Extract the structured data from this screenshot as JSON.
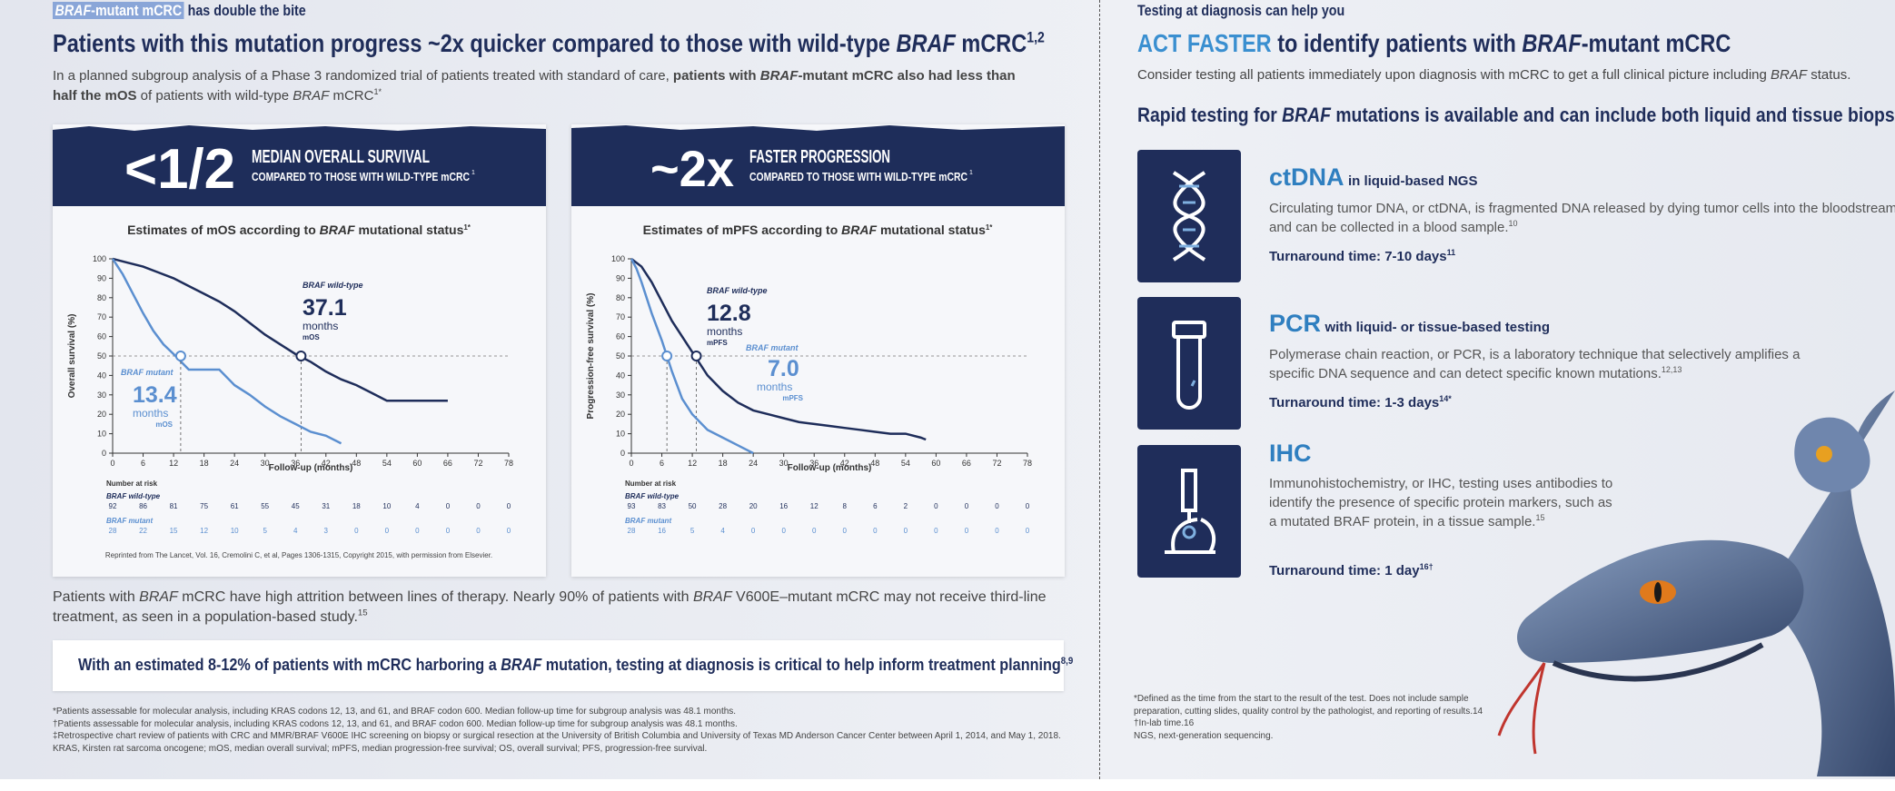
{
  "left": {
    "kicker": [
      "BRAF",
      "-mutant mCRC",
      " has double the bite"
    ],
    "title": [
      "Patients with this mutation progress ~2x quicker compared to those with wild-type ",
      "BRAF",
      " mCRC",
      "1,2"
    ],
    "intro": [
      "In a planned subgroup analysis of a Phase 3 randomized trial of patients treated with standard of care, ",
      "patients with ",
      "BRAF",
      "-mutant mCRC also had less than half the mOS",
      " of patients with wild-type ",
      "BRAF",
      " mCRC",
      "1*"
    ],
    "cards": [
      {
        "banner_big": "<1/2",
        "banner_title": "MEDIAN OVERALL SURVIVAL",
        "banner_sub": "COMPARED TO THOSE WITH WILD-TYPE mCRC",
        "banner_sup": "1",
        "chart": {
          "type": "line",
          "title": [
            "Estimates of mOS according to ",
            "BRAF",
            " mutational status",
            "1*"
          ],
          "ylabel": "Overall survival (%)",
          "xlabel": "Follow-up (months)",
          "xlim": [
            0,
            78
          ],
          "ylim": [
            0,
            100
          ],
          "xticks": [
            0,
            6,
            12,
            18,
            24,
            30,
            36,
            42,
            48,
            54,
            60,
            66,
            72,
            78
          ],
          "yticks": [
            0,
            10,
            20,
            30,
            40,
            50,
            60,
            70,
            80,
            90,
            100
          ],
          "risk_title": "Number at risk",
          "series": [
            {
              "name": "BRAF wild-type",
              "color": "#1e2d5a",
              "x": [
                0,
                3,
                6,
                9,
                12,
                15,
                18,
                21,
                24,
                27,
                30,
                33,
                36,
                39,
                42,
                45,
                48,
                51,
                54,
                57,
                60,
                63,
                66
              ],
              "values": [
                100,
                98,
                96,
                93,
                90,
                86,
                82,
                78,
                73,
                67,
                61,
                56,
                51,
                47,
                42,
                38,
                35,
                31,
                27,
                27,
                27,
                27,
                27
              ],
              "median": 37.1,
              "median_unit": "months",
              "median_label": "mOS",
              "at_risk": [
                92,
                86,
                81,
                75,
                61,
                55,
                45,
                31,
                18,
                10,
                4,
                0,
                0,
                0
              ]
            },
            {
              "name": "BRAF mutant",
              "color": "#5b8fd0",
              "x": [
                0,
                2,
                4,
                6,
                8,
                10,
                12,
                15,
                18,
                21,
                24,
                27,
                30,
                33,
                36,
                39,
                42,
                45
              ],
              "values": [
                100,
                92,
                82,
                72,
                63,
                56,
                51,
                43,
                43,
                43,
                35,
                30,
                24,
                19,
                15,
                11,
                9,
                5
              ],
              "median": 13.4,
              "median_unit": "months",
              "median_label": "mOS",
              "at_risk": [
                28,
                22,
                15,
                12,
                10,
                5,
                4,
                3,
                0,
                0,
                0,
                0,
                0,
                0
              ]
            }
          ]
        },
        "source": "Reprinted from The Lancet, Vol. 16, Cremolini C, et al, Pages 1306-1315, Copyright 2015, with permission from Elsevier."
      },
      {
        "banner_big": "~2x",
        "banner_title": "FASTER PROGRESSION",
        "banner_sub": "COMPARED TO THOSE WITH WILD-TYPE mCRC",
        "banner_sup": "1",
        "chart": {
          "type": "line",
          "title": [
            "Estimates of mPFS according to ",
            "BRAF",
            " mutational status",
            "1*"
          ],
          "ylabel": "Progression-free survival (%)",
          "xlabel": "Follow-up (months)",
          "xlim": [
            0,
            78
          ],
          "ylim": [
            0,
            100
          ],
          "xticks": [
            0,
            6,
            12,
            18,
            24,
            30,
            36,
            42,
            48,
            54,
            60,
            66,
            72,
            78
          ],
          "yticks": [
            0,
            10,
            20,
            30,
            40,
            50,
            60,
            70,
            80,
            90,
            100
          ],
          "risk_title": "Number at risk",
          "series": [
            {
              "name": "BRAF wild-type",
              "color": "#1e2d5a",
              "x": [
                0,
                2,
                4,
                6,
                8,
                10,
                12,
                15,
                18,
                21,
                24,
                27,
                30,
                33,
                36,
                39,
                42,
                45,
                48,
                51,
                54,
                57,
                58
              ],
              "values": [
                100,
                96,
                88,
                78,
                68,
                60,
                52,
                40,
                32,
                26,
                22,
                20,
                18,
                16,
                15,
                14,
                13,
                12,
                11,
                10,
                10,
                8,
                7
              ],
              "median": 12.8,
              "median_unit": "months",
              "median_label": "mPFS",
              "at_risk": [
                93,
                83,
                50,
                28,
                20,
                16,
                12,
                8,
                6,
                2,
                0,
                0,
                0,
                0
              ]
            },
            {
              "name": "BRAF mutant",
              "color": "#5b8fd0",
              "x": [
                0,
                1,
                2,
                3,
                4,
                5,
                6,
                7,
                8,
                9,
                10,
                12,
                15,
                18,
                21,
                24
              ],
              "values": [
                100,
                95,
                88,
                80,
                72,
                65,
                58,
                50,
                42,
                35,
                28,
                20,
                12,
                8,
                4,
                0
              ],
              "median": {
                "value": 7,
                "label": "7.0"
              },
              "median_unit": "months",
              "median_label": "mPFS",
              "at_risk": [
                28,
                16,
                5,
                4,
                0,
                0,
                0,
                0,
                0,
                0,
                0,
                0,
                0,
                0
              ]
            }
          ]
        }
      }
    ],
    "note": [
      "Patients with ",
      "BRAF",
      " mCRC have high attrition between lines of therapy. Nearly 90% of patients with ",
      "BRAF",
      " V600E–mutant mCRC may not receive third-line treatment, as seen in a population-based study.",
      "15"
    ],
    "callout": [
      "With an estimated 8-12% of patients with mCRC harboring a ",
      "BRAF",
      " mutation, testing at diagnosis is critical to help inform treatment planning",
      "8,9"
    ],
    "footnotes": [
      "*Patients assessable for molecular analysis, including KRAS codons 12, 13, and 61, and BRAF codon 600. Median follow-up time for subgroup analysis was 48.1 months.",
      "†Patients assessable for molecular analysis, including KRAS codons 12, 13, and 61, and BRAF codon 600. Median follow-up time for subgroup analysis was 48.1 months.",
      "‡Retrospective chart review of patients with CRC and MMR/BRAF V600E IHC screening on biopsy or surgical resection at the University of British Columbia and University of Texas MD Anderson Cancer Center between April 1, 2014, and May 1, 2018.",
      "KRAS, Kirsten rat sarcoma oncogene; mOS, median overall survival; mPFS, median progression-free survival; OS, overall survival; PFS, progression-free survival."
    ]
  },
  "right": {
    "kicker": "Testing at diagnosis can help you",
    "title": [
      "ACT FASTER",
      " to identify patients with ",
      "BRAF",
      "-mutant mCRC"
    ],
    "intro": [
      "Consider testing all patients immediately upon diagnosis with mCRC to get a full clinical picture including ",
      "BRAF",
      " status."
    ],
    "subhead": [
      "Rapid testing for ",
      "BRAF",
      " mutations is available and can include both liquid and tissue biopsies"
    ],
    "methods": [
      {
        "name": "ctDNA",
        "qualifier": "in liquid-based NGS",
        "description": "Circulating tumor DNA, or ctDNA, is fragmented DNA released by dying tumor cells into the bloodstream and can be collected in a blood sample.",
        "description_ref": "10",
        "turnaround": "Turnaround time: 7-10 days",
        "turnaround_ref": "11"
      },
      {
        "name": "PCR",
        "qualifier": "with liquid- or tissue-based testing",
        "description": "Polymerase chain reaction, or PCR, is a laboratory technique that selectively amplifies a specific DNA sequence and can detect specific known mutations.",
        "description_ref": "12,13",
        "turnaround": "Turnaround time: 1-3 days",
        "turnaround_ref": "14*"
      },
      {
        "name": "IHC",
        "description": "Immunohistochemistry, or IHC, testing uses antibodies to identify the presence of specific protein markers, such as a mutated BRAF protein, in a tissue sample.",
        "description_ref": "15",
        "turnaround": "Turnaround time: 1 day",
        "turnaround_ref": "16†"
      }
    ],
    "footnotes": [
      "*Defined as the time from the start to the result of the test. Does not include sample preparation, cutting slides, quality control by the pathologist, and reporting of results.14",
      "†In-lab time.16",
      "NGS, next-generation sequencing."
    ]
  }
}
